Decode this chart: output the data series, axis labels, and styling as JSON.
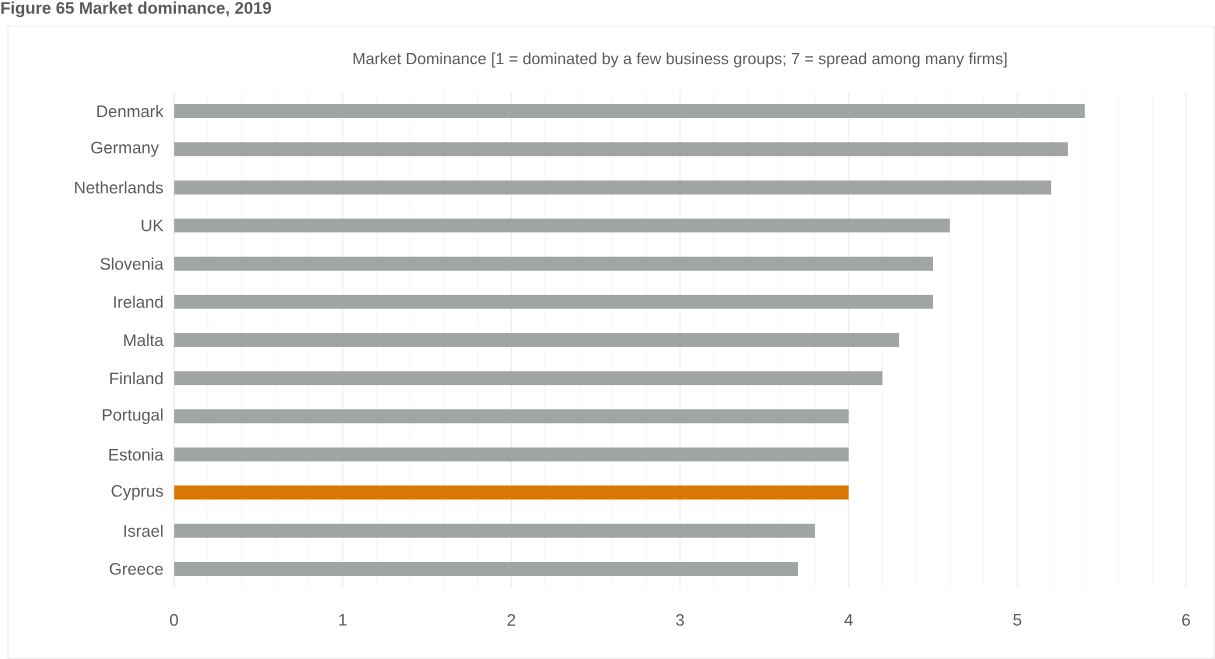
{
  "chart_data": {
    "type": "bar",
    "orientation": "horizontal",
    "title": "Figure 65 Market dominance, 2019",
    "subtitle": "Market Dominance [1 = dominated by a few business groups; 7 = spread among many firms]",
    "categories": [
      "Denmark",
      "Germany ",
      "Netherlands",
      "UK",
      "Slovenia",
      "Ireland",
      "Malta",
      "Finland",
      "Portugal",
      "Estonia",
      "Cyprus",
      "Israel",
      "Greece"
    ],
    "values": [
      5.4,
      5.3,
      5.2,
      4.6,
      4.5,
      4.5,
      4.3,
      4.2,
      4.0,
      4.0,
      4.0,
      3.8,
      3.7
    ],
    "colors": [
      "#a0a5a4",
      "#a0a5a4",
      "#a0a5a4",
      "#a0a5a4",
      "#a0a5a4",
      "#a0a5a4",
      "#a0a5a4",
      "#a0a5a4",
      "#a0a5a4",
      "#a0a5a4",
      "#d97800",
      "#a0a5a4",
      "#a0a5a4"
    ],
    "xlim": [
      0,
      6
    ],
    "xticks": [
      0,
      1,
      2,
      3,
      4,
      5,
      6
    ],
    "grid": "x"
  }
}
